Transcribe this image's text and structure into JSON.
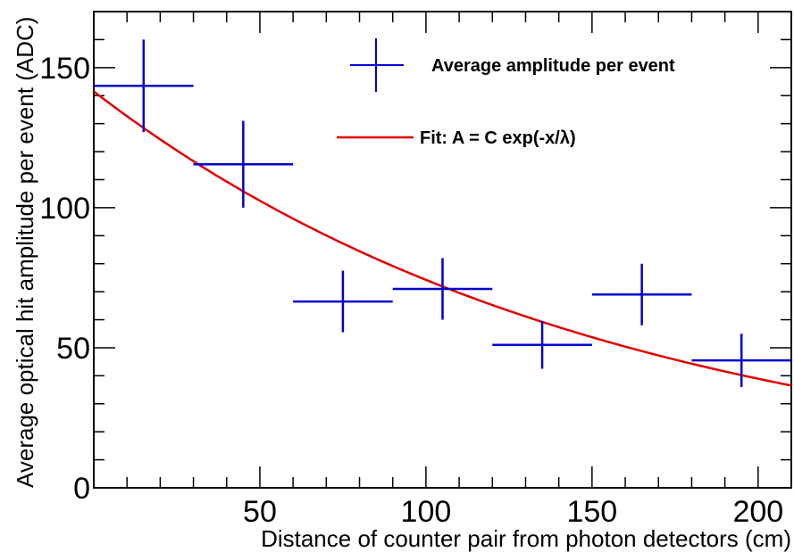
{
  "chart_data": {
    "type": "scatter",
    "xlabel": "Distance of counter pair from photon detectors (cm)",
    "ylabel": "Average optical hit amplitude per event (ADC)",
    "xlim": [
      0,
      210
    ],
    "ylim": [
      0,
      170
    ],
    "x_ticks": [
      50,
      100,
      150,
      200
    ],
    "y_ticks": [
      0,
      50,
      100,
      150
    ],
    "grid": false,
    "legend_position": "top-right",
    "series": [
      {
        "name": "Average amplitude per event",
        "kind": "errorbar",
        "color": "#0000cc",
        "points": [
          {
            "x": 15,
            "y": 143.5,
            "xerr": 15,
            "yerr": 16.5
          },
          {
            "x": 45,
            "y": 115.5,
            "xerr": 15,
            "yerr": 15.5
          },
          {
            "x": 75,
            "y": 66.5,
            "xerr": 15,
            "yerr": 11
          },
          {
            "x": 105,
            "y": 71,
            "xerr": 15,
            "yerr": 11
          },
          {
            "x": 135,
            "y": 51,
            "xerr": 15,
            "yerr": 8.5
          },
          {
            "x": 165,
            "y": 69,
            "xerr": 15,
            "yerr": 11
          },
          {
            "x": 195,
            "y": 45.5,
            "xerr": 15,
            "yerr": 9.5
          }
        ]
      },
      {
        "name": "Fit: A = C exp(-x/λ)",
        "kind": "curve",
        "color": "#e00000",
        "C": 141.5,
        "lambda": 155,
        "x_range": [
          0,
          210
        ]
      }
    ]
  }
}
